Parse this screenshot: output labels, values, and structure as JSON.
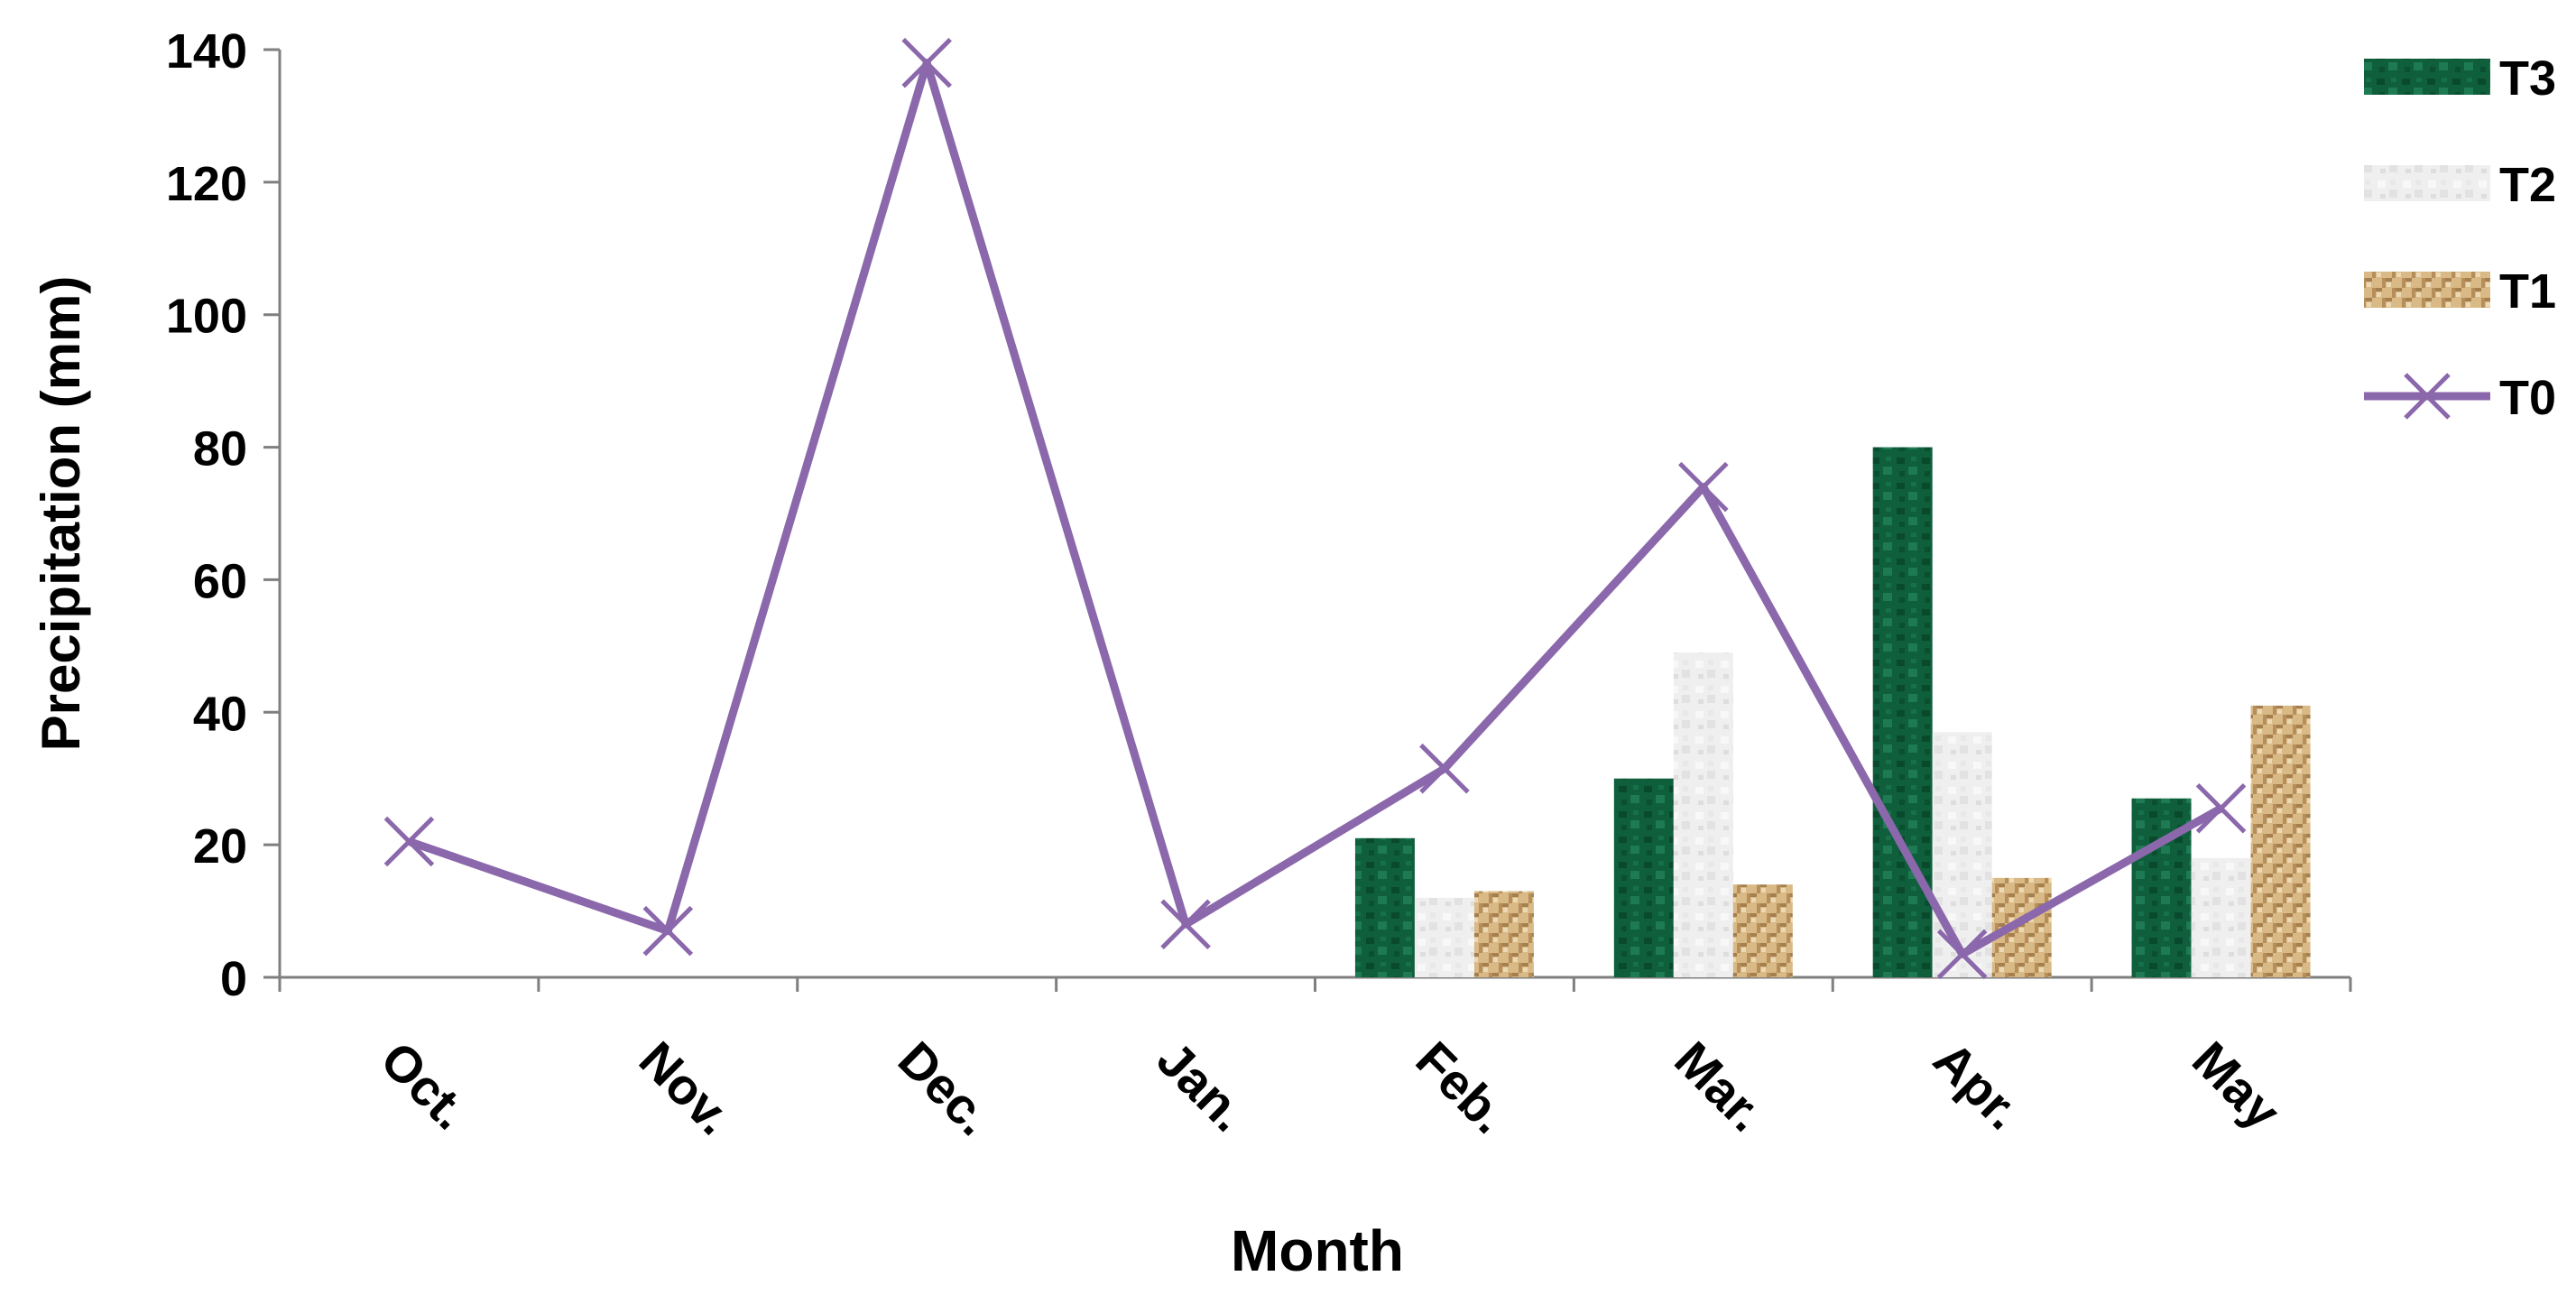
{
  "chart_data": {
    "type": "bar",
    "title": "",
    "xlabel": "Month",
    "ylabel": "Precipitation (mm)",
    "categories": [
      "Oct.",
      "Nov.",
      "Dec.",
      "Jan.",
      "Feb.",
      "Mar.",
      "Apr.",
      "May"
    ],
    "ylim": [
      0,
      140
    ],
    "yticks": [
      0,
      20,
      40,
      60,
      80,
      100,
      120,
      140
    ],
    "yticklabels": [
      "0",
      "20",
      "40",
      "60",
      "80",
      "100",
      "120",
      "140"
    ],
    "grid": false,
    "legend_position": "right",
    "series": [
      {
        "name": "T3",
        "type": "bar",
        "color": "#0f5f3c",
        "values": [
          null,
          null,
          null,
          null,
          21,
          30,
          80,
          27
        ]
      },
      {
        "name": "T2",
        "type": "bar",
        "color": "#ececec",
        "values": [
          null,
          null,
          null,
          null,
          12,
          49,
          37,
          18
        ]
      },
      {
        "name": "T1",
        "type": "bar",
        "color": "#d2b07c",
        "values": [
          null,
          null,
          null,
          null,
          13,
          14,
          15,
          41
        ]
      },
      {
        "name": "T0",
        "type": "line",
        "marker": "x",
        "color": "#8b67ab",
        "values": [
          20.5,
          7,
          138,
          8,
          31.5,
          74,
          3.5,
          25.5
        ]
      }
    ]
  }
}
